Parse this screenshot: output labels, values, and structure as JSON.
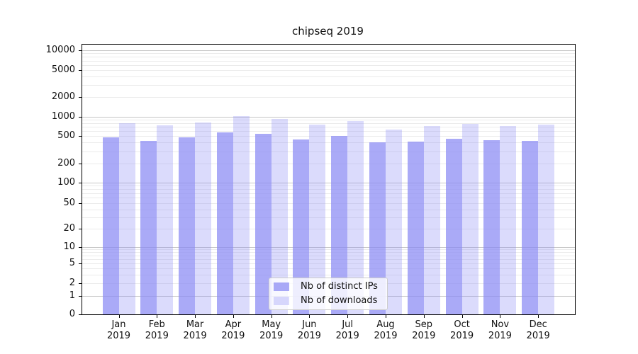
{
  "figure": {
    "title": "chipseq 2019"
  },
  "chart_data": {
    "type": "bar",
    "title": "chipseq 2019",
    "xlabel": "",
    "ylabel": "",
    "categories": [
      "Jan 2019",
      "Feb 2019",
      "Mar 2019",
      "Apr 2019",
      "May 2019",
      "Jun 2019",
      "Jul 2019",
      "Aug 2019",
      "Sep 2019",
      "Oct 2019",
      "Nov 2019",
      "Dec 2019"
    ],
    "series": [
      {
        "name": "Nb of distinct IPs",
        "color": "#8989f4",
        "alpha": 0.72,
        "values": [
          480,
          420,
          470,
          570,
          535,
          440,
          500,
          400,
          410,
          458,
          433,
          423
        ]
      },
      {
        "name": "Nb of downloads",
        "color": "#8989f4",
        "alpha": 0.3,
        "values": [
          800,
          730,
          810,
          1030,
          930,
          745,
          855,
          630,
          710,
          775,
          711,
          750
        ]
      }
    ],
    "y_scale": "symlog",
    "y_tick_values": [
      0,
      1,
      2,
      5,
      10,
      20,
      50,
      100,
      200,
      500,
      1000,
      2000,
      5000,
      10000
    ],
    "ylim": [
      0,
      15000
    ],
    "grid": "horizontal, major on decades + faint minors",
    "legend_position": "lower center"
  },
  "colors": {
    "grid_major": "#c6c6c6",
    "grid_minor": "#ebebeb",
    "spine": "#000000",
    "legend_border": "#cccccc"
  }
}
